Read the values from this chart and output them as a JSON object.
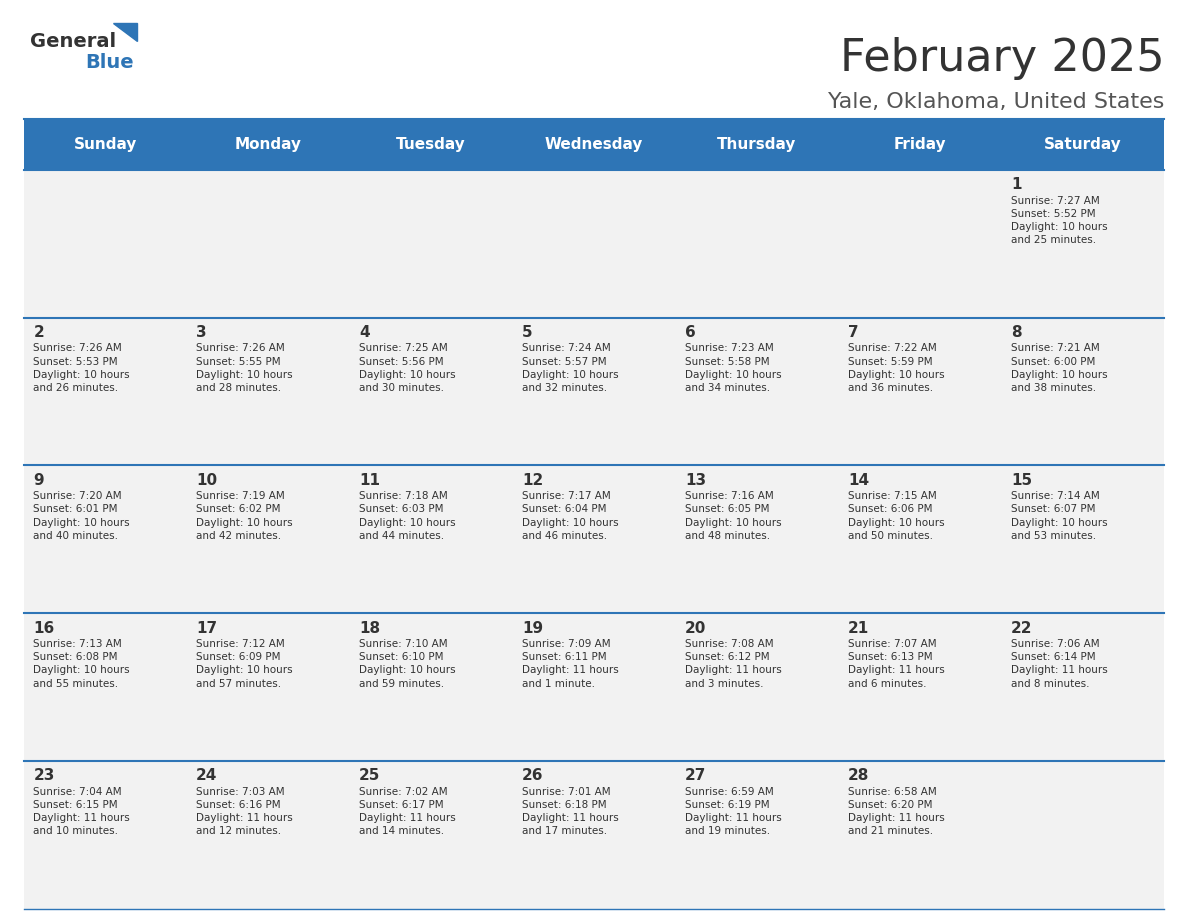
{
  "title": "February 2025",
  "subtitle": "Yale, Oklahoma, United States",
  "days_of_week": [
    "Sunday",
    "Monday",
    "Tuesday",
    "Wednesday",
    "Thursday",
    "Friday",
    "Saturday"
  ],
  "header_bg": "#2E75B6",
  "header_text": "#FFFFFF",
  "cell_bg_light": "#F2F2F2",
  "cell_bg_white": "#FFFFFF",
  "cell_text": "#333333",
  "border_color": "#2E75B6",
  "title_color": "#333333",
  "subtitle_color": "#555555",
  "logo_general_color": "#333333",
  "logo_blue_color": "#2E75B6",
  "weeks": [
    [
      {
        "day": null,
        "info": null
      },
      {
        "day": null,
        "info": null
      },
      {
        "day": null,
        "info": null
      },
      {
        "day": null,
        "info": null
      },
      {
        "day": null,
        "info": null
      },
      {
        "day": null,
        "info": null
      },
      {
        "day": 1,
        "info": "Sunrise: 7:27 AM\nSunset: 5:52 PM\nDaylight: 10 hours\nand 25 minutes."
      }
    ],
    [
      {
        "day": 2,
        "info": "Sunrise: 7:26 AM\nSunset: 5:53 PM\nDaylight: 10 hours\nand 26 minutes."
      },
      {
        "day": 3,
        "info": "Sunrise: 7:26 AM\nSunset: 5:55 PM\nDaylight: 10 hours\nand 28 minutes."
      },
      {
        "day": 4,
        "info": "Sunrise: 7:25 AM\nSunset: 5:56 PM\nDaylight: 10 hours\nand 30 minutes."
      },
      {
        "day": 5,
        "info": "Sunrise: 7:24 AM\nSunset: 5:57 PM\nDaylight: 10 hours\nand 32 minutes."
      },
      {
        "day": 6,
        "info": "Sunrise: 7:23 AM\nSunset: 5:58 PM\nDaylight: 10 hours\nand 34 minutes."
      },
      {
        "day": 7,
        "info": "Sunrise: 7:22 AM\nSunset: 5:59 PM\nDaylight: 10 hours\nand 36 minutes."
      },
      {
        "day": 8,
        "info": "Sunrise: 7:21 AM\nSunset: 6:00 PM\nDaylight: 10 hours\nand 38 minutes."
      }
    ],
    [
      {
        "day": 9,
        "info": "Sunrise: 7:20 AM\nSunset: 6:01 PM\nDaylight: 10 hours\nand 40 minutes."
      },
      {
        "day": 10,
        "info": "Sunrise: 7:19 AM\nSunset: 6:02 PM\nDaylight: 10 hours\nand 42 minutes."
      },
      {
        "day": 11,
        "info": "Sunrise: 7:18 AM\nSunset: 6:03 PM\nDaylight: 10 hours\nand 44 minutes."
      },
      {
        "day": 12,
        "info": "Sunrise: 7:17 AM\nSunset: 6:04 PM\nDaylight: 10 hours\nand 46 minutes."
      },
      {
        "day": 13,
        "info": "Sunrise: 7:16 AM\nSunset: 6:05 PM\nDaylight: 10 hours\nand 48 minutes."
      },
      {
        "day": 14,
        "info": "Sunrise: 7:15 AM\nSunset: 6:06 PM\nDaylight: 10 hours\nand 50 minutes."
      },
      {
        "day": 15,
        "info": "Sunrise: 7:14 AM\nSunset: 6:07 PM\nDaylight: 10 hours\nand 53 minutes."
      }
    ],
    [
      {
        "day": 16,
        "info": "Sunrise: 7:13 AM\nSunset: 6:08 PM\nDaylight: 10 hours\nand 55 minutes."
      },
      {
        "day": 17,
        "info": "Sunrise: 7:12 AM\nSunset: 6:09 PM\nDaylight: 10 hours\nand 57 minutes."
      },
      {
        "day": 18,
        "info": "Sunrise: 7:10 AM\nSunset: 6:10 PM\nDaylight: 10 hours\nand 59 minutes."
      },
      {
        "day": 19,
        "info": "Sunrise: 7:09 AM\nSunset: 6:11 PM\nDaylight: 11 hours\nand 1 minute."
      },
      {
        "day": 20,
        "info": "Sunrise: 7:08 AM\nSunset: 6:12 PM\nDaylight: 11 hours\nand 3 minutes."
      },
      {
        "day": 21,
        "info": "Sunrise: 7:07 AM\nSunset: 6:13 PM\nDaylight: 11 hours\nand 6 minutes."
      },
      {
        "day": 22,
        "info": "Sunrise: 7:06 AM\nSunset: 6:14 PM\nDaylight: 11 hours\nand 8 minutes."
      }
    ],
    [
      {
        "day": 23,
        "info": "Sunrise: 7:04 AM\nSunset: 6:15 PM\nDaylight: 11 hours\nand 10 minutes."
      },
      {
        "day": 24,
        "info": "Sunrise: 7:03 AM\nSunset: 6:16 PM\nDaylight: 11 hours\nand 12 minutes."
      },
      {
        "day": 25,
        "info": "Sunrise: 7:02 AM\nSunset: 6:17 PM\nDaylight: 11 hours\nand 14 minutes."
      },
      {
        "day": 26,
        "info": "Sunrise: 7:01 AM\nSunset: 6:18 PM\nDaylight: 11 hours\nand 17 minutes."
      },
      {
        "day": 27,
        "info": "Sunrise: 6:59 AM\nSunset: 6:19 PM\nDaylight: 11 hours\nand 19 minutes."
      },
      {
        "day": 28,
        "info": "Sunrise: 6:58 AM\nSunset: 6:20 PM\nDaylight: 11 hours\nand 21 minutes."
      },
      {
        "day": null,
        "info": null
      }
    ]
  ]
}
